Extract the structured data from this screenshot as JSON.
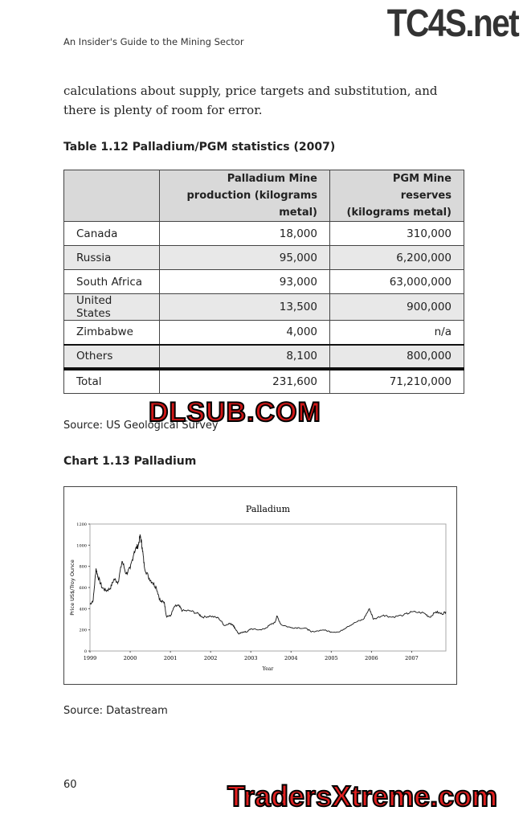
{
  "header": {
    "running_title": "An Insider's Guide to the Mining Sector"
  },
  "watermarks": {
    "top": "TC4S.net",
    "middle": "DLSUB.COM",
    "bottom": "TradersXtreme.com"
  },
  "body_text": "calculations about supply, price targets and substitution, and there is plenty of room for error.",
  "table": {
    "caption": "Table 1.12 Palladium/PGM statistics (2007)",
    "columns": [
      "",
      "Palladium Mine production (kilograms metal)",
      "PGM Mine reserves (kilograms metal)"
    ],
    "rows": [
      [
        "Canada",
        "18,000",
        "310,000"
      ],
      [
        "Russia",
        "95,000",
        "6,200,000"
      ],
      [
        "South Africa",
        "93,000",
        "63,000,000"
      ],
      [
        "United States",
        "13,500",
        "900,000"
      ],
      [
        "Zimbabwe",
        "4,000",
        "n/a"
      ],
      [
        "Others",
        "8,100",
        "800,000"
      ],
      [
        "Total",
        "231,600",
        "71,210,000"
      ]
    ],
    "source": "Source: US Geological Survey"
  },
  "chart_caption": "Chart 1.13 Palladium",
  "chart_source": "Source: Datastream",
  "chart_data": {
    "type": "line",
    "title": "Palladium",
    "xlabel": "Year",
    "ylabel": "Price US$/Troy Ounce",
    "xlim": [
      1999,
      2007.85
    ],
    "ylim": [
      0,
      1200
    ],
    "grid": false,
    "legend": "none",
    "xticks": [
      "1999",
      "2000",
      "2001",
      "2002",
      "2003",
      "2004",
      "2005",
      "2006",
      "2007"
    ],
    "yticks": [
      "0",
      "200",
      "400",
      "600",
      "800",
      "1000",
      "1200"
    ],
    "line_color": "#111111",
    "x": [
      1999.0,
      1999.08,
      1999.15,
      1999.2,
      1999.3,
      1999.4,
      1999.5,
      1999.6,
      1999.7,
      1999.8,
      1999.9,
      2000.0,
      2000.1,
      2000.2,
      2000.25,
      2000.3,
      2000.35,
      2000.45,
      2000.55,
      2000.65,
      2000.75,
      2000.85,
      2000.9,
      2001.0,
      2001.1,
      2001.2,
      2001.3,
      2001.5,
      2001.7,
      2001.8,
      2002.0,
      2002.2,
      2002.35,
      2002.45,
      2002.55,
      2002.6,
      2002.7,
      2002.8,
      2002.9,
      2003.0,
      2003.2,
      2003.35,
      2003.45,
      2003.6,
      2003.65,
      2003.75,
      2004.0,
      2004.2,
      2004.4,
      2004.5,
      2004.8,
      2005.0,
      2005.2,
      2005.4,
      2005.6,
      2005.8,
      2005.95,
      2006.05,
      2006.3,
      2006.5,
      2006.8,
      2007.0,
      2007.3,
      2007.45,
      2007.6,
      2007.75,
      2007.85
    ],
    "y": [
      440,
      480,
      780,
      700,
      600,
      570,
      590,
      680,
      650,
      850,
      730,
      780,
      940,
      1000,
      1090,
      980,
      800,
      700,
      650,
      600,
      470,
      460,
      330,
      330,
      420,
      430,
      380,
      380,
      350,
      320,
      330,
      310,
      240,
      260,
      250,
      220,
      160,
      180,
      180,
      210,
      200,
      210,
      240,
      270,
      330,
      250,
      220,
      220,
      210,
      180,
      200,
      180,
      180,
      230,
      270,
      300,
      400,
      300,
      340,
      320,
      340,
      370,
      360,
      320,
      370,
      350,
      370
    ]
  },
  "page_number": "60"
}
